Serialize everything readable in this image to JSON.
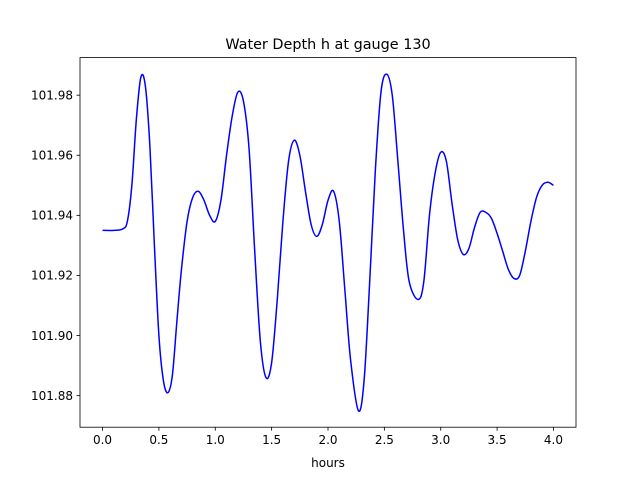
{
  "chart_data": {
    "type": "line",
    "title": "Water Depth h at gauge 130",
    "xlabel": "hours",
    "ylabel": "",
    "xlim": [
      -0.2,
      4.2
    ],
    "ylim": [
      101.8695,
      101.9925
    ],
    "xticks": [
      0.0,
      0.5,
      1.0,
      1.5,
      2.0,
      2.5,
      3.0,
      3.5,
      4.0
    ],
    "xtick_labels": [
      "0.0",
      "0.5",
      "1.0",
      "1.5",
      "2.0",
      "2.5",
      "3.0",
      "3.5",
      "4.0"
    ],
    "yticks": [
      101.88,
      101.9,
      101.92,
      101.94,
      101.96,
      101.98
    ],
    "ytick_labels": [
      "101.88",
      "101.90",
      "101.92",
      "101.94",
      "101.96",
      "101.98"
    ],
    "grid": false,
    "series": [
      {
        "name": "",
        "color": "#0000ff",
        "x": [
          0.0,
          0.1,
          0.18,
          0.22,
          0.26,
          0.3,
          0.34,
          0.38,
          0.42,
          0.46,
          0.5,
          0.54,
          0.58,
          0.62,
          0.66,
          0.7,
          0.75,
          0.8,
          0.85,
          0.9,
          0.95,
          1.0,
          1.05,
          1.1,
          1.15,
          1.2,
          1.25,
          1.3,
          1.35,
          1.4,
          1.45,
          1.5,
          1.55,
          1.6,
          1.65,
          1.7,
          1.75,
          1.8,
          1.85,
          1.9,
          1.95,
          2.0,
          2.05,
          2.1,
          2.15,
          2.2,
          2.27,
          2.32,
          2.37,
          2.42,
          2.47,
          2.52,
          2.57,
          2.62,
          2.67,
          2.72,
          2.8,
          2.85,
          2.9,
          2.95,
          3.0,
          3.05,
          3.1,
          3.15,
          3.2,
          3.25,
          3.3,
          3.35,
          3.4,
          3.45,
          3.5,
          3.55,
          3.6,
          3.65,
          3.7,
          3.75,
          3.8,
          3.85,
          3.9,
          3.95,
          4.0
        ],
        "values": [
          101.935,
          101.935,
          101.9355,
          101.938,
          101.95,
          101.972,
          101.986,
          101.983,
          101.963,
          101.93,
          101.9,
          101.885,
          101.881,
          101.887,
          101.905,
          101.922,
          101.938,
          101.946,
          101.948,
          101.945,
          101.94,
          101.938,
          101.945,
          101.96,
          101.973,
          101.981,
          101.978,
          101.962,
          101.928,
          101.898,
          101.886,
          101.891,
          101.912,
          101.938,
          101.958,
          101.965,
          101.96,
          101.948,
          101.937,
          101.933,
          101.937,
          101.945,
          101.948,
          101.938,
          101.915,
          101.892,
          101.875,
          101.885,
          101.918,
          101.955,
          101.981,
          101.987,
          101.98,
          101.958,
          101.935,
          101.918,
          101.912,
          101.918,
          101.94,
          101.954,
          101.961,
          101.958,
          101.944,
          101.932,
          101.927,
          101.929,
          101.936,
          101.941,
          101.941,
          101.939,
          101.934,
          101.928,
          101.922,
          101.919,
          101.92,
          101.928,
          101.938,
          101.946,
          101.95,
          101.951,
          101.95
        ]
      }
    ]
  }
}
